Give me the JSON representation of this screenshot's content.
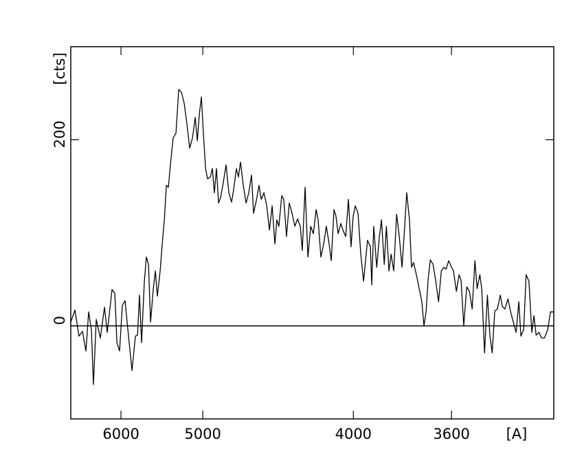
{
  "chart_data": {
    "type": "line",
    "xlabel": "[A]",
    "ylabel": "[cts]",
    "xscale": "inverse-square",
    "xlim": [
      7023,
      3289
    ],
    "xticks": [
      6000,
      5000,
      4000,
      3600
    ],
    "ylim": [
      -100,
      300
    ],
    "yticks": [
      0,
      200
    ],
    "zero_line": true,
    "mirror_ticks": true,
    "series": [
      {
        "color": "#000000",
        "x": [
          7023,
          6918,
          6819,
          6737,
          6661,
          6601,
          6543,
          6501,
          6444,
          6364,
          6285,
          6235,
          6150,
          6102,
          6067,
          6023,
          5978,
          5935,
          5882,
          5830,
          5780,
          5750,
          5722,
          5693,
          5655,
          5628,
          5600,
          5573,
          5538,
          5512,
          5487,
          5453,
          5428,
          5403,
          5379,
          5356,
          5333,
          5302,
          5271,
          5241,
          5212,
          5183,
          5155,
          5127,
          5099,
          5072,
          5052,
          5032,
          5013,
          4994,
          4974,
          4956,
          4931,
          4913,
          4895,
          4877,
          4859,
          4841,
          4819,
          4796,
          4773,
          4751,
          4734,
          4713,
          4697,
          4681,
          4660,
          4639,
          4619,
          4599,
          4584,
          4564,
          4545,
          4530,
          4511,
          4492,
          4474,
          4456,
          4438,
          4425,
          4412,
          4394,
          4381,
          4364,
          4347,
          4330,
          4313,
          4297,
          4281,
          4269,
          4253,
          4237,
          4221,
          4206,
          4191,
          4180,
          4165,
          4150,
          4136,
          4124,
          4110,
          4096,
          4086,
          4075,
          4061,
          4051,
          4037,
          4024,
          4011,
          4001,
          3991,
          3978,
          3965,
          3952,
          3943,
          3934,
          3921,
          3915,
          3906,
          3893,
          3881,
          3872,
          3860,
          3851,
          3840,
          3831,
          3820,
          3808,
          3797,
          3786,
          3775,
          3767,
          3756,
          3748,
          3740,
          3729,
          3718,
          3708,
          3700,
          3692,
          3684,
          3676,
          3666,
          3656,
          3646,
          3636,
          3627,
          3619,
          3610,
          3600,
          3593,
          3583,
          3574,
          3567,
          3558,
          3548,
          3539,
          3530,
          3521,
          3514,
          3505,
          3499,
          3490,
          3481,
          3473,
          3466,
          3458,
          3450,
          3441,
          3435,
          3427,
          3418,
          3410,
          3402,
          3394,
          3386,
          3380,
          3372,
          3365,
          3357,
          3349,
          3343,
          3337,
          3329,
          3322,
          3314,
          3305,
          3298,
          3289
        ],
        "values": [
          4,
          17,
          -11,
          -6,
          -27,
          15,
          -4,
          -63,
          7,
          -13,
          20,
          -7,
          39,
          35,
          -18,
          -27,
          22,
          27,
          -11,
          -48,
          -11,
          -10,
          33,
          -18,
          48,
          74,
          66,
          4,
          40,
          59,
          32,
          59,
          88,
          114,
          151,
          149,
          173,
          202,
          207,
          254,
          251,
          239,
          217,
          191,
          202,
          224,
          199,
          228,
          246,
          206,
          169,
          158,
          160,
          169,
          143,
          169,
          132,
          138,
          154,
          173,
          143,
          133,
          147,
          169,
          160,
          176,
          151,
          132,
          143,
          162,
          121,
          135,
          151,
          136,
          143,
          129,
          103,
          129,
          88,
          114,
          107,
          140,
          136,
          96,
          132,
          121,
          107,
          115,
          107,
          81,
          149,
          74,
          107,
          99,
          125,
          114,
          74,
          88,
          107,
          92,
          70,
          125,
          118,
          99,
          110,
          103,
          96,
          136,
          85,
          118,
          129,
          121,
          77,
          48,
          70,
          92,
          85,
          44,
          107,
          63,
          96,
          114,
          66,
          107,
          59,
          77,
          59,
          120,
          96,
          63,
          107,
          143,
          114,
          63,
          68,
          55,
          40,
          26,
          0,
          15,
          51,
          71,
          66,
          48,
          26,
          59,
          63,
          61,
          70,
          63,
          59,
          37,
          55,
          49,
          0,
          42,
          37,
          18,
          70,
          40,
          55,
          40,
          -29,
          33,
          -11,
          -29,
          16,
          18,
          33,
          21,
          18,
          29,
          15,
          4,
          -7,
          26,
          -11,
          -4,
          55,
          48,
          -7,
          11,
          -10,
          -7,
          -13,
          -13,
          -4,
          15,
          15
        ]
      }
    ]
  }
}
